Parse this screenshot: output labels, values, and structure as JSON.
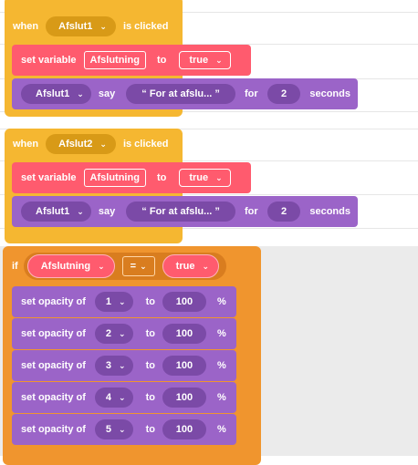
{
  "event1": {
    "when": "when",
    "sprite": "Afslut1",
    "clicked": "is clicked",
    "set_variable": "set variable",
    "var_name": "Afslutning",
    "to": "to",
    "value": "true",
    "say_sprite": "Afslut1",
    "say": "say",
    "message": "“ For at afslu... ”",
    "for": "for",
    "seconds_value": "2",
    "seconds": "seconds"
  },
  "event2": {
    "when": "when",
    "sprite": "Afslut2",
    "clicked": "is clicked",
    "set_variable": "set variable",
    "var_name": "Afslutning",
    "to": "to",
    "value": "true",
    "say_sprite": "Afslut1",
    "say": "say",
    "message": "“ For at afslu... ”",
    "for": "for",
    "seconds_value": "2",
    "seconds": "seconds"
  },
  "if_block": {
    "if": "if",
    "variable": "Afslutning",
    "operator": "=",
    "value": "true"
  },
  "opacity_rows": [
    {
      "label": "set opacity of",
      "target": "1",
      "to": "to",
      "value": "100",
      "unit": "%"
    },
    {
      "label": "set opacity of",
      "target": "2",
      "to": "to",
      "value": "100",
      "unit": "%"
    },
    {
      "label": "set opacity of",
      "target": "3",
      "to": "to",
      "value": "100",
      "unit": "%"
    },
    {
      "label": "set opacity of",
      "target": "4",
      "to": "to",
      "value": "100",
      "unit": "%"
    },
    {
      "label": "set opacity of",
      "target": "5",
      "to": "to",
      "value": "100",
      "unit": "%"
    }
  ],
  "icons": {
    "chevron": "⌄"
  }
}
